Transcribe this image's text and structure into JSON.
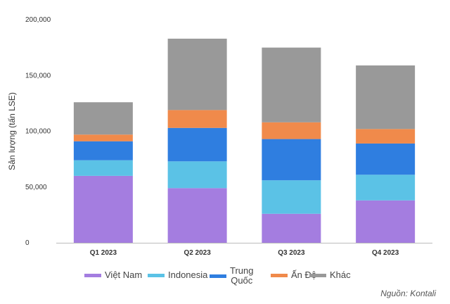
{
  "chart_data": {
    "type": "bar",
    "stacked": true,
    "categories": [
      "Q1 2023",
      "Q2 2023",
      "Q3 2023",
      "Q4 2023"
    ],
    "series": [
      {
        "name": "Việt Nam",
        "color": "#a47de0",
        "values": [
          60000,
          49000,
          26000,
          38000
        ]
      },
      {
        "name": "Indonesia",
        "color": "#5bc2e6",
        "values": [
          14000,
          24000,
          30000,
          23000
        ]
      },
      {
        "name": "Trung Quốc",
        "color": "#2f7ee0",
        "values": [
          17000,
          30000,
          37000,
          28000
        ]
      },
      {
        "name": "Ấn Độ",
        "color": "#f08a4b",
        "values": [
          6000,
          16000,
          15000,
          13000
        ]
      },
      {
        "name": "Khác",
        "color": "#999999",
        "values": [
          29000,
          64000,
          67000,
          57000
        ]
      }
    ],
    "yticks": [
      "0",
      "50,000",
      "100,000",
      "150,000",
      "200,000"
    ],
    "ylim": [
      0,
      200000
    ],
    "ylabel": "Sản lượng (tấn LSE)",
    "xlabel": "",
    "grid": false,
    "legend_position": "bottom"
  },
  "source": "Nguồn: Kontali"
}
